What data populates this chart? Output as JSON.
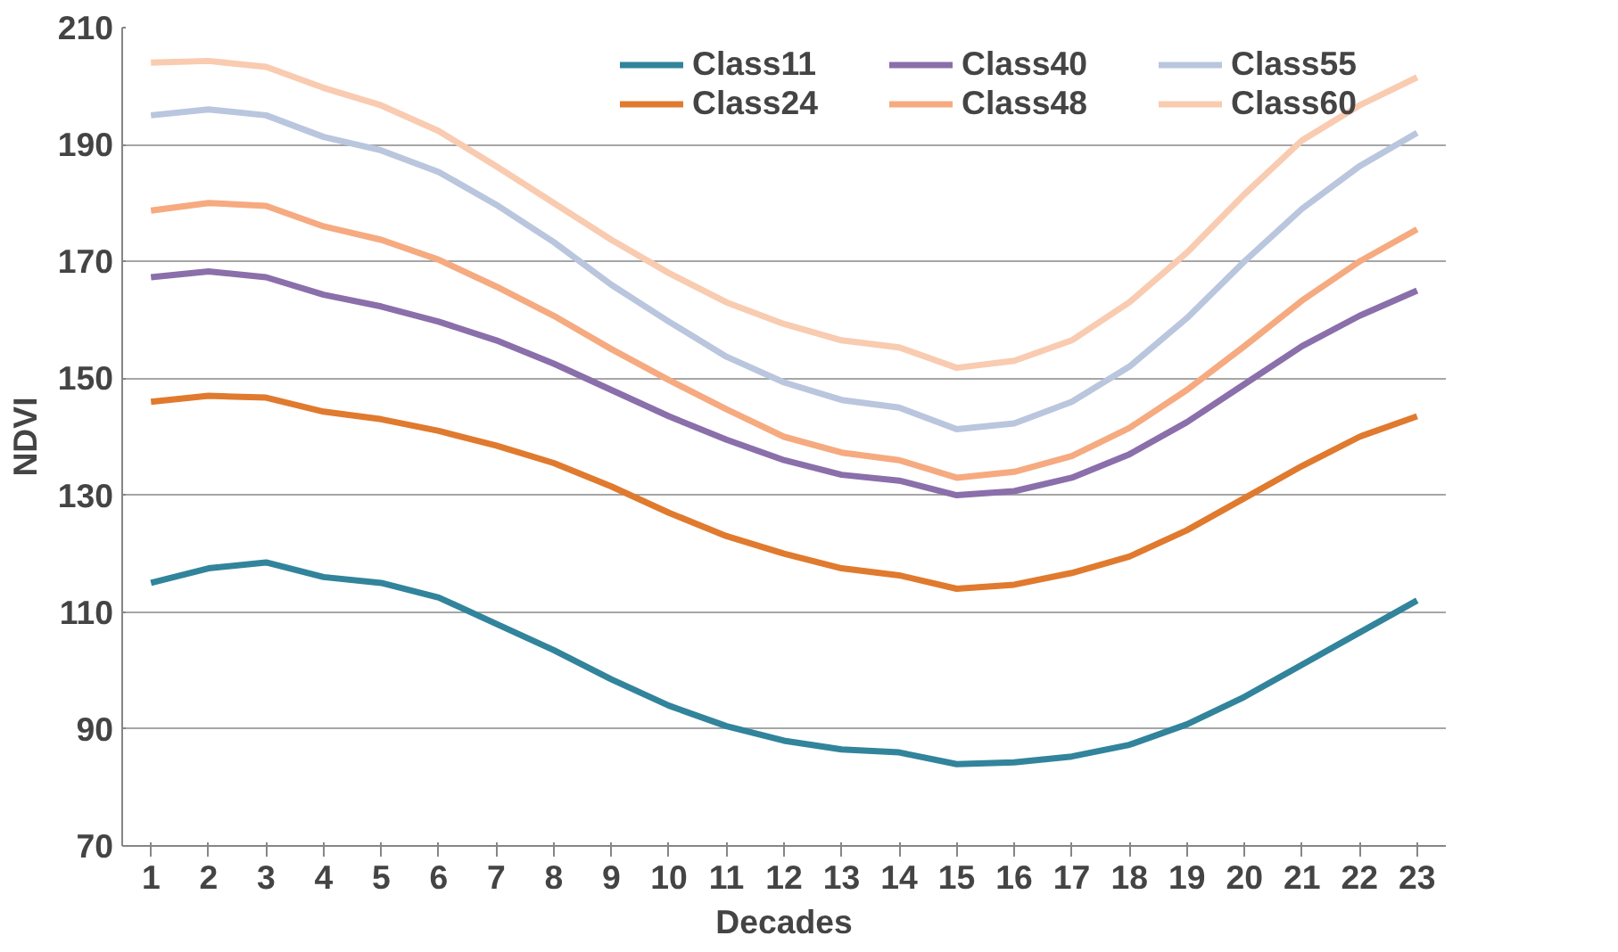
{
  "chart_data": {
    "type": "line",
    "xlabel": "Decades",
    "ylabel": "NDVI",
    "x": [
      1,
      2,
      3,
      4,
      5,
      6,
      7,
      8,
      9,
      10,
      11,
      12,
      13,
      14,
      15,
      16,
      17,
      18,
      19,
      20,
      21,
      22,
      23
    ],
    "xlim": [
      0.5,
      23.5
    ],
    "xticks": [
      1,
      2,
      3,
      4,
      5,
      6,
      7,
      8,
      9,
      10,
      11,
      12,
      13,
      14,
      15,
      16,
      17,
      18,
      19,
      20,
      21,
      22,
      23
    ],
    "ylim": [
      70,
      210
    ],
    "yticks": [
      70,
      90,
      110,
      130,
      150,
      170,
      190,
      210
    ],
    "grid": "y",
    "legend": "top right",
    "marker": "none",
    "line_style": "solid",
    "series": [
      {
        "name": "Class11",
        "color": "#31849b",
        "values": [
          115,
          117.5,
          118.5,
          116,
          115,
          112.5,
          108,
          103.5,
          98.5,
          94,
          90.5,
          88,
          86.5,
          86,
          84,
          84.3,
          85.3,
          87.3,
          90.8,
          95.5,
          101,
          106.5,
          112
        ]
      },
      {
        "name": "Class24",
        "color": "#e07a2e",
        "values": [
          146,
          147,
          146.7,
          144.3,
          143,
          141,
          138.5,
          135.5,
          131.5,
          127,
          123,
          120,
          117.5,
          116.3,
          114,
          114.7,
          116.7,
          119.5,
          124,
          129.5,
          135,
          140,
          143.5
        ]
      },
      {
        "name": "Class40",
        "color": "#8a6fab",
        "values": [
          167.3,
          168.3,
          167.3,
          164.3,
          162.3,
          159.7,
          156.5,
          152.5,
          148,
          143.5,
          139.5,
          136,
          133.5,
          132.5,
          130,
          130.7,
          133,
          137,
          142.5,
          149,
          155.5,
          160.7,
          165
        ]
      },
      {
        "name": "Class48",
        "color": "#f6aa80",
        "values": [
          178.7,
          180,
          179.5,
          176,
          173.7,
          170.3,
          165.7,
          160.7,
          155,
          149.7,
          144.7,
          140,
          137.3,
          136,
          133,
          134,
          136.7,
          141.5,
          148,
          155.5,
          163.3,
          170,
          175.5
        ]
      },
      {
        "name": "Class55",
        "color": "#b9c6de",
        "values": [
          195,
          196,
          195,
          191.3,
          189,
          185.3,
          179.7,
          173.3,
          166,
          159.7,
          153.7,
          149.3,
          146.3,
          145,
          141.3,
          142.3,
          146,
          152,
          160.3,
          170,
          179,
          186.3,
          192
        ]
      },
      {
        "name": "Class60",
        "color": "#f9cbb0",
        "values": [
          204,
          204.3,
          203.3,
          199.7,
          196.7,
          192.3,
          186.3,
          180,
          173.7,
          168,
          163,
          159.3,
          156.5,
          155.3,
          151.8,
          153,
          156.5,
          163,
          171.5,
          181.5,
          190.7,
          196.7,
          201.5
        ]
      }
    ]
  }
}
